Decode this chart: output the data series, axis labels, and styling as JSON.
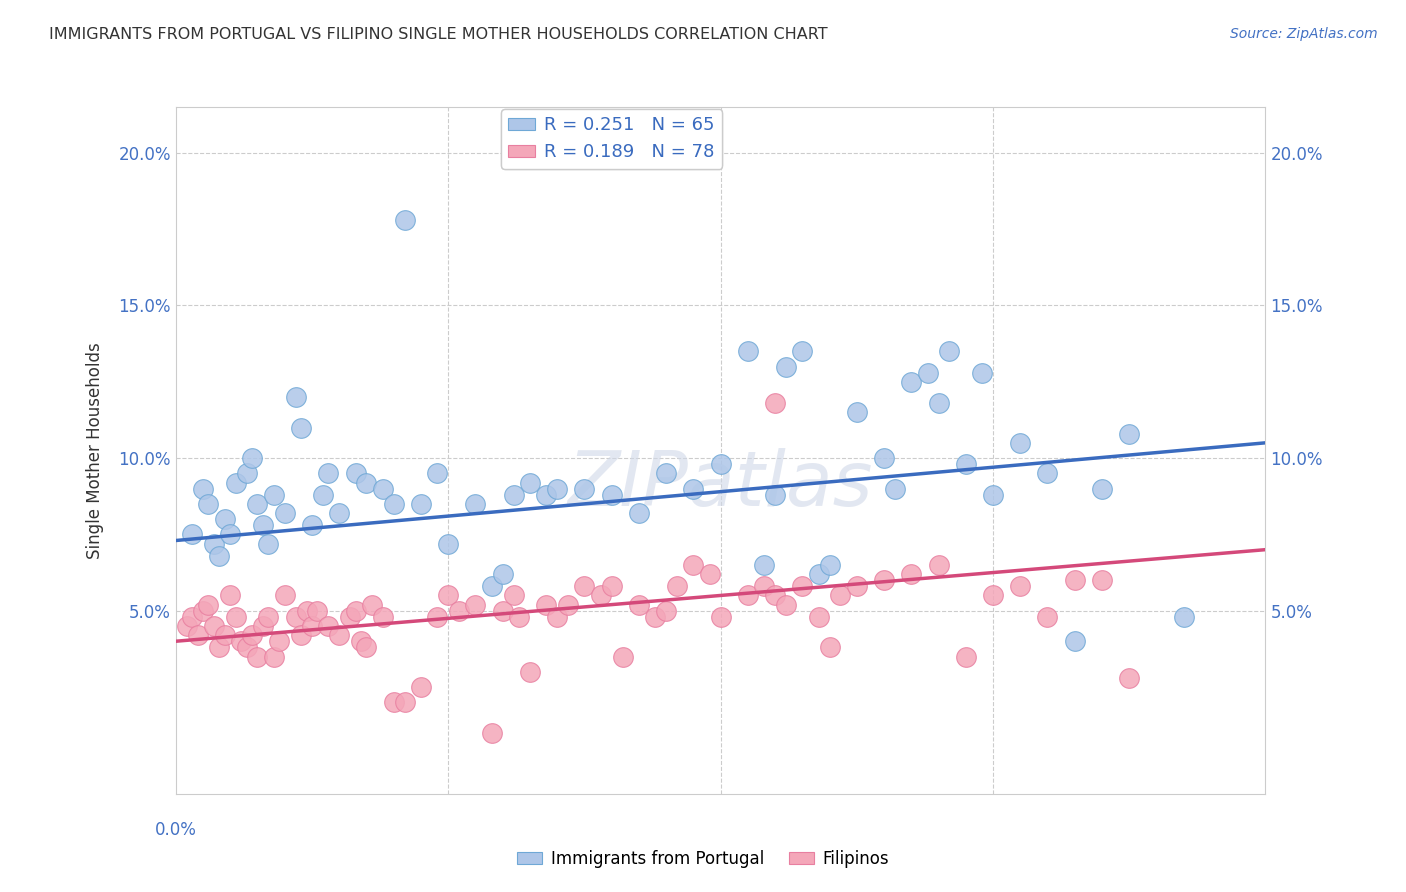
{
  "title": "IMMIGRANTS FROM PORTUGAL VS FILIPINO SINGLE MOTHER HOUSEHOLDS CORRELATION CHART",
  "source": "Source: ZipAtlas.com",
  "ylabel": "Single Mother Households",
  "yticks": [
    0.0,
    0.05,
    0.1,
    0.15,
    0.2
  ],
  "ytick_labels": [
    "",
    "5.0%",
    "10.0%",
    "15.0%",
    "20.0%"
  ],
  "xlim": [
    0.0,
    0.2
  ],
  "ylim": [
    -0.01,
    0.215
  ],
  "legend_entries": [
    {
      "label": "R = 0.251   N = 65",
      "color": "#aec6e8"
    },
    {
      "label": "R = 0.189   N = 78",
      "color": "#f4a7b9"
    }
  ],
  "series1_color": "#aec6e8",
  "series1_edge": "#6fa8d6",
  "series2_color": "#f4a7b9",
  "series2_edge": "#e87fa0",
  "line1_color": "#3a6bbf",
  "line2_color": "#d4497a",
  "blue_line_start": 0.073,
  "blue_line_end": 0.105,
  "pink_line_start": 0.04,
  "pink_line_end": 0.07,
  "blue_x": [
    0.003,
    0.005,
    0.006,
    0.007,
    0.008,
    0.009,
    0.01,
    0.011,
    0.013,
    0.014,
    0.015,
    0.016,
    0.017,
    0.018,
    0.02,
    0.022,
    0.023,
    0.025,
    0.027,
    0.028,
    0.03,
    0.033,
    0.035,
    0.038,
    0.04,
    0.042,
    0.045,
    0.048,
    0.05,
    0.055,
    0.058,
    0.06,
    0.062,
    0.065,
    0.068,
    0.07,
    0.075,
    0.08,
    0.085,
    0.09,
    0.095,
    0.1,
    0.105,
    0.108,
    0.11,
    0.112,
    0.115,
    0.118,
    0.12,
    0.125,
    0.13,
    0.132,
    0.135,
    0.138,
    0.14,
    0.142,
    0.145,
    0.148,
    0.15,
    0.155,
    0.16,
    0.165,
    0.17,
    0.175,
    0.185
  ],
  "blue_y": [
    0.075,
    0.09,
    0.085,
    0.072,
    0.068,
    0.08,
    0.075,
    0.092,
    0.095,
    0.1,
    0.085,
    0.078,
    0.072,
    0.088,
    0.082,
    0.12,
    0.11,
    0.078,
    0.088,
    0.095,
    0.082,
    0.095,
    0.092,
    0.09,
    0.085,
    0.178,
    0.085,
    0.095,
    0.072,
    0.085,
    0.058,
    0.062,
    0.088,
    0.092,
    0.088,
    0.09,
    0.09,
    0.088,
    0.082,
    0.095,
    0.09,
    0.098,
    0.135,
    0.065,
    0.088,
    0.13,
    0.135,
    0.062,
    0.065,
    0.115,
    0.1,
    0.09,
    0.125,
    0.128,
    0.118,
    0.135,
    0.098,
    0.128,
    0.088,
    0.105,
    0.095,
    0.04,
    0.09,
    0.108,
    0.048
  ],
  "pink_x": [
    0.002,
    0.003,
    0.004,
    0.005,
    0.006,
    0.007,
    0.008,
    0.009,
    0.01,
    0.011,
    0.012,
    0.013,
    0.014,
    0.015,
    0.016,
    0.017,
    0.018,
    0.019,
    0.02,
    0.022,
    0.023,
    0.024,
    0.025,
    0.026,
    0.028,
    0.03,
    0.032,
    0.033,
    0.034,
    0.035,
    0.036,
    0.038,
    0.04,
    0.042,
    0.045,
    0.048,
    0.05,
    0.052,
    0.055,
    0.058,
    0.06,
    0.062,
    0.063,
    0.065,
    0.068,
    0.07,
    0.072,
    0.075,
    0.078,
    0.08,
    0.082,
    0.085,
    0.088,
    0.09,
    0.092,
    0.095,
    0.098,
    0.1,
    0.105,
    0.108,
    0.11,
    0.112,
    0.115,
    0.118,
    0.12,
    0.122,
    0.125,
    0.13,
    0.135,
    0.14,
    0.145,
    0.15,
    0.155,
    0.16,
    0.165,
    0.17,
    0.175,
    0.11
  ],
  "pink_y": [
    0.045,
    0.048,
    0.042,
    0.05,
    0.052,
    0.045,
    0.038,
    0.042,
    0.055,
    0.048,
    0.04,
    0.038,
    0.042,
    0.035,
    0.045,
    0.048,
    0.035,
    0.04,
    0.055,
    0.048,
    0.042,
    0.05,
    0.045,
    0.05,
    0.045,
    0.042,
    0.048,
    0.05,
    0.04,
    0.038,
    0.052,
    0.048,
    0.02,
    0.02,
    0.025,
    0.048,
    0.055,
    0.05,
    0.052,
    0.01,
    0.05,
    0.055,
    0.048,
    0.03,
    0.052,
    0.048,
    0.052,
    0.058,
    0.055,
    0.058,
    0.035,
    0.052,
    0.048,
    0.05,
    0.058,
    0.065,
    0.062,
    0.048,
    0.055,
    0.058,
    0.055,
    0.052,
    0.058,
    0.048,
    0.038,
    0.055,
    0.058,
    0.06,
    0.062,
    0.065,
    0.035,
    0.055,
    0.058,
    0.048,
    0.06,
    0.06,
    0.028,
    0.118
  ],
  "watermark": "ZIPatlas",
  "watermark_color": "#d0d8e8",
  "bg_color": "#ffffff",
  "grid_color": "#cccccc"
}
